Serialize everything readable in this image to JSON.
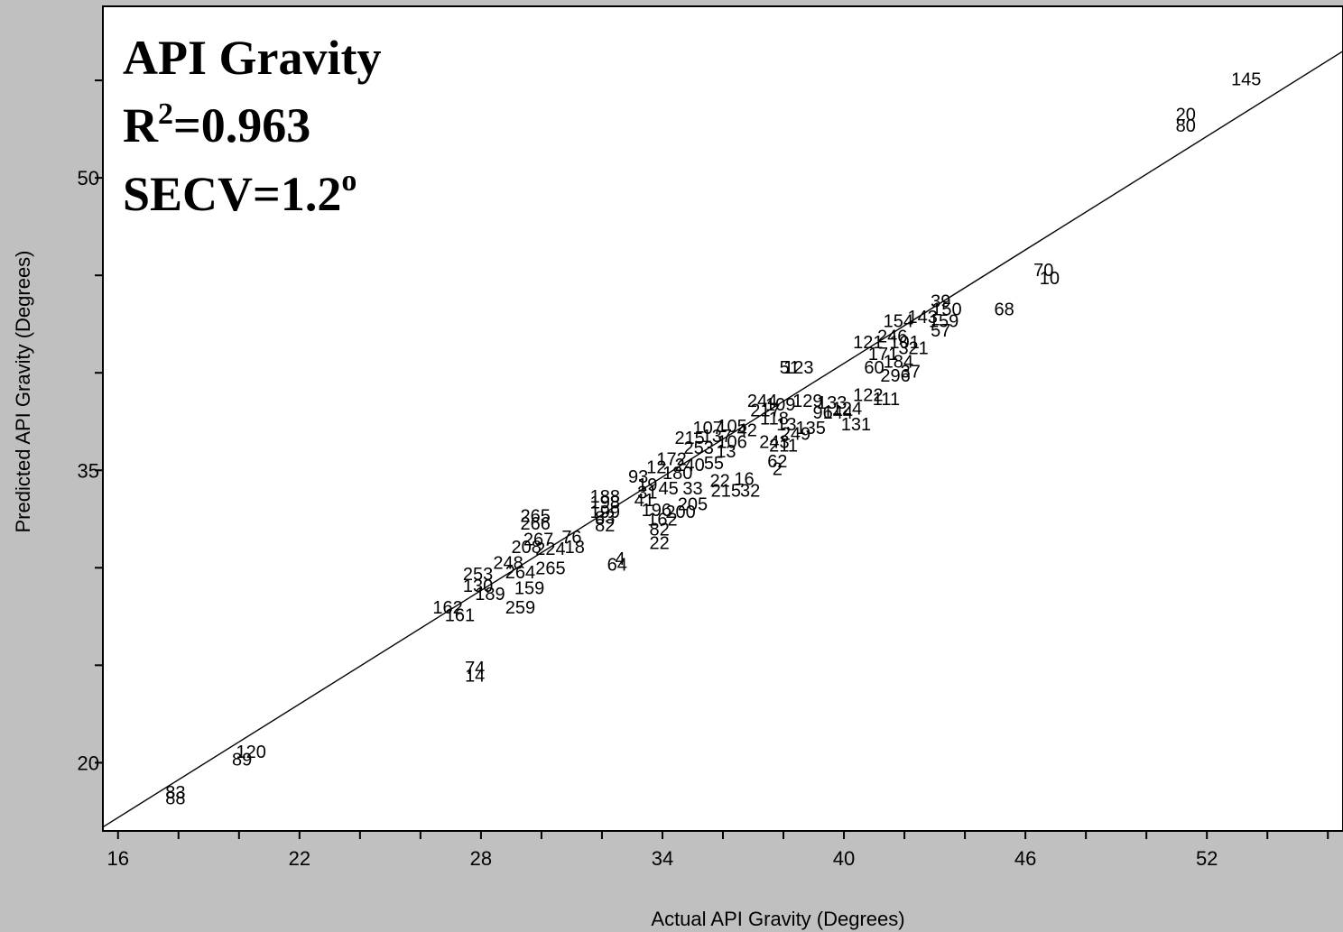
{
  "chart_data": {
    "type": "scatter",
    "title_lines": {
      "line1": "API Gravity",
      "r2_base": "R",
      "r2_sup": "2",
      "r2_value": "=0.963",
      "secv_base": "SECV=1.2",
      "secv_sup": "o"
    },
    "xlabel": "Actual API Gravity (Degrees)",
    "ylabel": "Predicted API Gravity (Degrees)",
    "xlim": [
      15.5,
      56.5
    ],
    "ylim": [
      16.5,
      58.8
    ],
    "x_ticks": [
      16,
      22,
      28,
      34,
      40,
      46,
      52
    ],
    "x_tick_labels": [
      "16",
      "22",
      "28",
      "34",
      "40",
      "46",
      "52"
    ],
    "y_ticks": [
      20,
      35,
      50
    ],
    "y_tick_labels": [
      "20",
      "35",
      "50"
    ],
    "grid": false,
    "fit_line": {
      "x": [
        15.5,
        56.5
      ],
      "y": [
        16.7,
        56.5
      ]
    },
    "points": [
      {
        "label": "145",
        "x": 53.3,
        "y": 55.0
      },
      {
        "label": "20",
        "x": 51.3,
        "y": 53.2
      },
      {
        "label": "80",
        "x": 51.3,
        "y": 52.6
      },
      {
        "label": "70",
        "x": 46.6,
        "y": 45.2
      },
      {
        "label": "10",
        "x": 46.8,
        "y": 44.8
      },
      {
        "label": "68",
        "x": 45.3,
        "y": 43.2
      },
      {
        "label": "39",
        "x": 43.2,
        "y": 43.6
      },
      {
        "label": "150",
        "x": 43.4,
        "y": 43.2
      },
      {
        "label": "159",
        "x": 43.3,
        "y": 42.6
      },
      {
        "label": "57",
        "x": 43.2,
        "y": 42.1
      },
      {
        "label": "154",
        "x": 41.8,
        "y": 42.6
      },
      {
        "label": "143",
        "x": 42.6,
        "y": 42.8
      },
      {
        "label": "121",
        "x": 40.8,
        "y": 41.5
      },
      {
        "label": "246",
        "x": 41.6,
        "y": 41.8
      },
      {
        "label": "101",
        "x": 42.0,
        "y": 41.5
      },
      {
        "label": "321",
        "x": 42.3,
        "y": 41.2
      },
      {
        "label": "171",
        "x": 41.3,
        "y": 40.9
      },
      {
        "label": "60",
        "x": 41.0,
        "y": 40.2
      },
      {
        "label": "184",
        "x": 41.8,
        "y": 40.5
      },
      {
        "label": "37",
        "x": 42.2,
        "y": 40.0
      },
      {
        "label": "296",
        "x": 41.7,
        "y": 39.8
      },
      {
        "label": "51",
        "x": 38.2,
        "y": 40.2
      },
      {
        "label": "123",
        "x": 38.5,
        "y": 40.2
      },
      {
        "label": "122",
        "x": 40.8,
        "y": 38.8
      },
      {
        "label": "111",
        "x": 41.4,
        "y": 38.6
      },
      {
        "label": "244",
        "x": 37.3,
        "y": 38.5
      },
      {
        "label": "109",
        "x": 37.9,
        "y": 38.3
      },
      {
        "label": "129",
        "x": 38.8,
        "y": 38.5
      },
      {
        "label": "133",
        "x": 39.6,
        "y": 38.4
      },
      {
        "label": "124",
        "x": 40.1,
        "y": 38.1
      },
      {
        "label": "96",
        "x": 39.3,
        "y": 37.9
      },
      {
        "label": "144",
        "x": 39.8,
        "y": 37.9
      },
      {
        "label": "131",
        "x": 40.4,
        "y": 37.3
      },
      {
        "label": "135",
        "x": 38.9,
        "y": 37.1
      },
      {
        "label": "217",
        "x": 37.4,
        "y": 38.0
      },
      {
        "label": "118",
        "x": 37.7,
        "y": 37.6
      },
      {
        "label": "13",
        "x": 38.1,
        "y": 37.3
      },
      {
        "label": "249",
        "x": 38.4,
        "y": 36.8
      },
      {
        "label": "105",
        "x": 36.3,
        "y": 37.2
      },
      {
        "label": "107",
        "x": 35.5,
        "y": 37.1
      },
      {
        "label": "42",
        "x": 36.8,
        "y": 37.0
      },
      {
        "label": "137",
        "x": 35.8,
        "y": 36.7
      },
      {
        "label": "106",
        "x": 36.3,
        "y": 36.4
      },
      {
        "label": "243",
        "x": 37.7,
        "y": 36.4
      },
      {
        "label": "211",
        "x": 38.0,
        "y": 36.2
      },
      {
        "label": "215",
        "x": 34.9,
        "y": 36.6
      },
      {
        "label": "253",
        "x": 35.2,
        "y": 36.1
      },
      {
        "label": "13",
        "x": 36.1,
        "y": 35.9
      },
      {
        "label": "172",
        "x": 34.3,
        "y": 35.5
      },
      {
        "label": "240",
        "x": 34.9,
        "y": 35.2
      },
      {
        "label": "55",
        "x": 35.7,
        "y": 35.3
      },
      {
        "label": "62",
        "x": 37.8,
        "y": 35.4
      },
      {
        "label": "2",
        "x": 37.8,
        "y": 35.0
      },
      {
        "label": "12",
        "x": 33.8,
        "y": 35.1
      },
      {
        "label": "180",
        "x": 34.5,
        "y": 34.8
      },
      {
        "label": "93",
        "x": 33.2,
        "y": 34.6
      },
      {
        "label": "19",
        "x": 33.5,
        "y": 34.2
      },
      {
        "label": "22",
        "x": 35.9,
        "y": 34.4
      },
      {
        "label": "16",
        "x": 36.7,
        "y": 34.5
      },
      {
        "label": "32",
        "x": 36.9,
        "y": 33.9
      },
      {
        "label": "31",
        "x": 33.5,
        "y": 33.8
      },
      {
        "label": "45",
        "x": 34.2,
        "y": 34.0
      },
      {
        "label": "33",
        "x": 35.0,
        "y": 34.0
      },
      {
        "label": "215",
        "x": 36.1,
        "y": 33.9
      },
      {
        "label": "41",
        "x": 33.4,
        "y": 33.4
      },
      {
        "label": "205",
        "x": 35.0,
        "y": 33.2
      },
      {
        "label": "200",
        "x": 34.6,
        "y": 32.8
      },
      {
        "label": "196",
        "x": 33.8,
        "y": 32.9
      },
      {
        "label": "162",
        "x": 34.0,
        "y": 32.4
      },
      {
        "label": "188",
        "x": 32.1,
        "y": 33.6
      },
      {
        "label": "198",
        "x": 32.1,
        "y": 33.3
      },
      {
        "label": "199",
        "x": 32.1,
        "y": 32.8
      },
      {
        "label": "83",
        "x": 32.1,
        "y": 32.5
      },
      {
        "label": "82",
        "x": 32.1,
        "y": 32.1
      },
      {
        "label": "82",
        "x": 33.9,
        "y": 31.9
      },
      {
        "label": "22",
        "x": 33.9,
        "y": 31.2
      },
      {
        "label": "265",
        "x": 29.8,
        "y": 32.6
      },
      {
        "label": "266",
        "x": 29.8,
        "y": 32.2
      },
      {
        "label": "267",
        "x": 29.9,
        "y": 31.4
      },
      {
        "label": "76",
        "x": 31.0,
        "y": 31.5
      },
      {
        "label": "18",
        "x": 31.1,
        "y": 31.0
      },
      {
        "label": "208",
        "x": 29.5,
        "y": 31.0
      },
      {
        "label": "224",
        "x": 30.3,
        "y": 30.9
      },
      {
        "label": "4",
        "x": 32.6,
        "y": 30.4
      },
      {
        "label": "64",
        "x": 32.5,
        "y": 30.1
      },
      {
        "label": "248",
        "x": 28.9,
        "y": 30.2
      },
      {
        "label": "253",
        "x": 27.9,
        "y": 29.6
      },
      {
        "label": "264",
        "x": 29.3,
        "y": 29.7
      },
      {
        "label": "265",
        "x": 30.3,
        "y": 29.9
      },
      {
        "label": "130",
        "x": 27.9,
        "y": 29.0
      },
      {
        "label": "189",
        "x": 28.3,
        "y": 28.6
      },
      {
        "label": "159",
        "x": 29.6,
        "y": 28.9
      },
      {
        "label": "259",
        "x": 29.3,
        "y": 27.9
      },
      {
        "label": "162",
        "x": 26.9,
        "y": 27.9
      },
      {
        "label": "161",
        "x": 27.3,
        "y": 27.5
      },
      {
        "label": "74",
        "x": 27.8,
        "y": 24.8
      },
      {
        "label": "14",
        "x": 27.8,
        "y": 24.4
      },
      {
        "label": "120",
        "x": 20.4,
        "y": 20.5
      },
      {
        "label": "89",
        "x": 20.1,
        "y": 20.1
      },
      {
        "label": "83",
        "x": 17.9,
        "y": 18.4
      },
      {
        "label": "88",
        "x": 17.9,
        "y": 18.1
      }
    ]
  }
}
